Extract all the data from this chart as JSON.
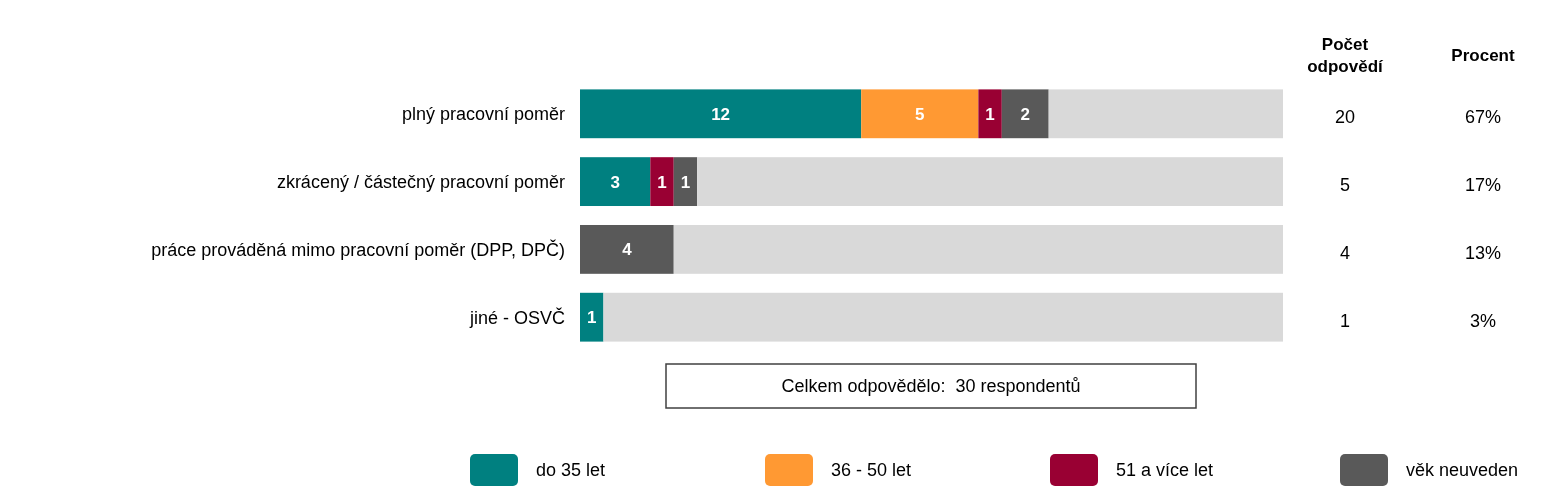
{
  "chart_data": {
    "type": "bar",
    "orientation": "horizontal",
    "stacked": true,
    "categories": [
      "plný pracovní poměr",
      "zkrácený / částečný pracovní poměr",
      "práce prováděná mimo pracovní poměr (DPP, DPČ)",
      "jiné - OSVČ"
    ],
    "xlim": [
      0,
      30
    ],
    "series": [
      {
        "name": "do 35 let",
        "color": "#008080",
        "values": [
          12,
          3,
          0,
          1
        ],
        "value_labels": [
          "12",
          "3",
          null,
          "1"
        ]
      },
      {
        "name": "36 - 50 let",
        "color": "#ff9933",
        "values": [
          5,
          0,
          0,
          0
        ],
        "value_labels": [
          "5",
          null,
          null,
          null
        ]
      },
      {
        "name": "51 a více let",
        "color": "#990033",
        "values": [
          1,
          1,
          0,
          0
        ],
        "value_labels": [
          "1",
          "1",
          null,
          null
        ]
      },
      {
        "name": "věk neuveden",
        "color": "#595959",
        "values": [
          2,
          1,
          4,
          0
        ],
        "value_labels": [
          "2",
          "1",
          "4",
          null
        ]
      },
      {
        "color": "#d9d9d9",
        "values": [
          10,
          25,
          26,
          29
        ]
      }
    ],
    "annotations": [
      "Počet odpovědí",
      "Procent",
      "Celkem odpovědělo:  30 respondentů",
      "20",
      "5",
      "4",
      "1",
      "67%",
      "17%",
      "13%",
      "3%"
    ],
    "legend": "bottom"
  }
}
